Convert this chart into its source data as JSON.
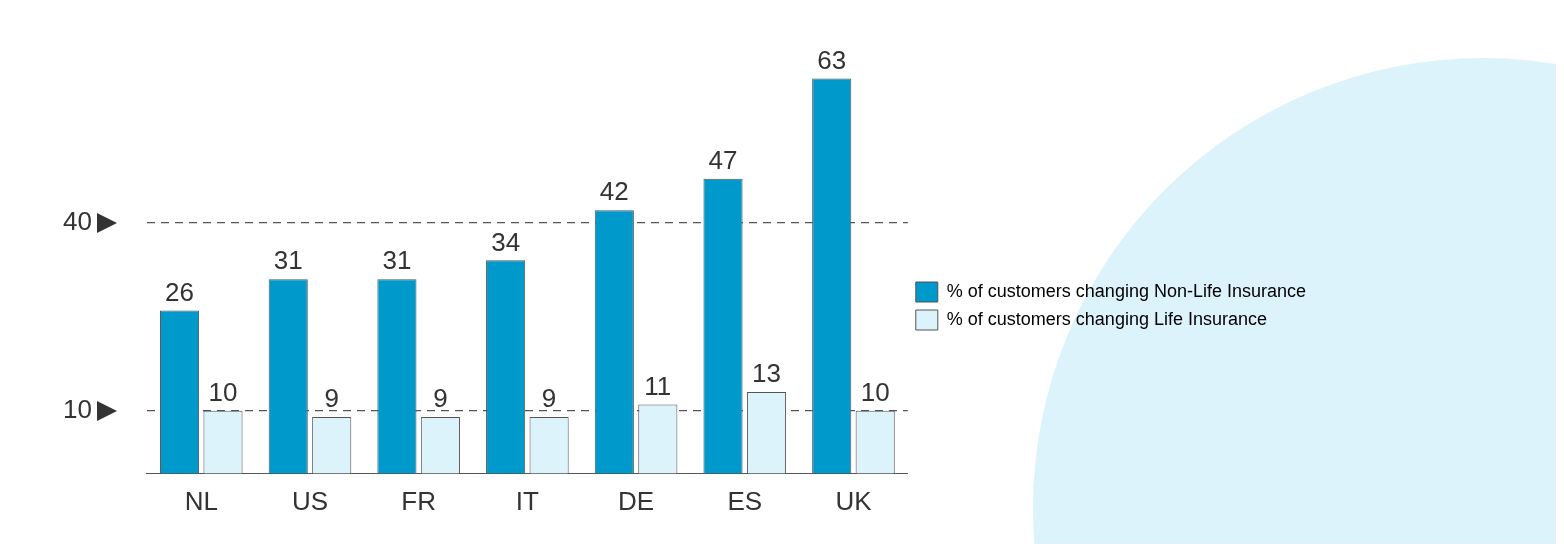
{
  "chart_data": {
    "type": "bar",
    "categories": [
      "NL",
      "US",
      "FR",
      "IT",
      "DE",
      "ES",
      "UK"
    ],
    "series": [
      {
        "name": "% of customers changing Non-Life Insurance",
        "color": "#0099cc",
        "values": [
          26,
          31,
          31,
          34,
          42,
          47,
          63
        ]
      },
      {
        "name": "% of customers changing Life Insurance",
        "color": "#ddf3fb",
        "values": [
          10,
          9,
          9,
          9,
          11,
          13,
          10
        ]
      }
    ],
    "ylim": [
      0,
      63
    ],
    "yticks": [
      10,
      40
    ],
    "grid": "y",
    "line_style": "dashed",
    "data_labels": true,
    "legend": "right"
  }
}
